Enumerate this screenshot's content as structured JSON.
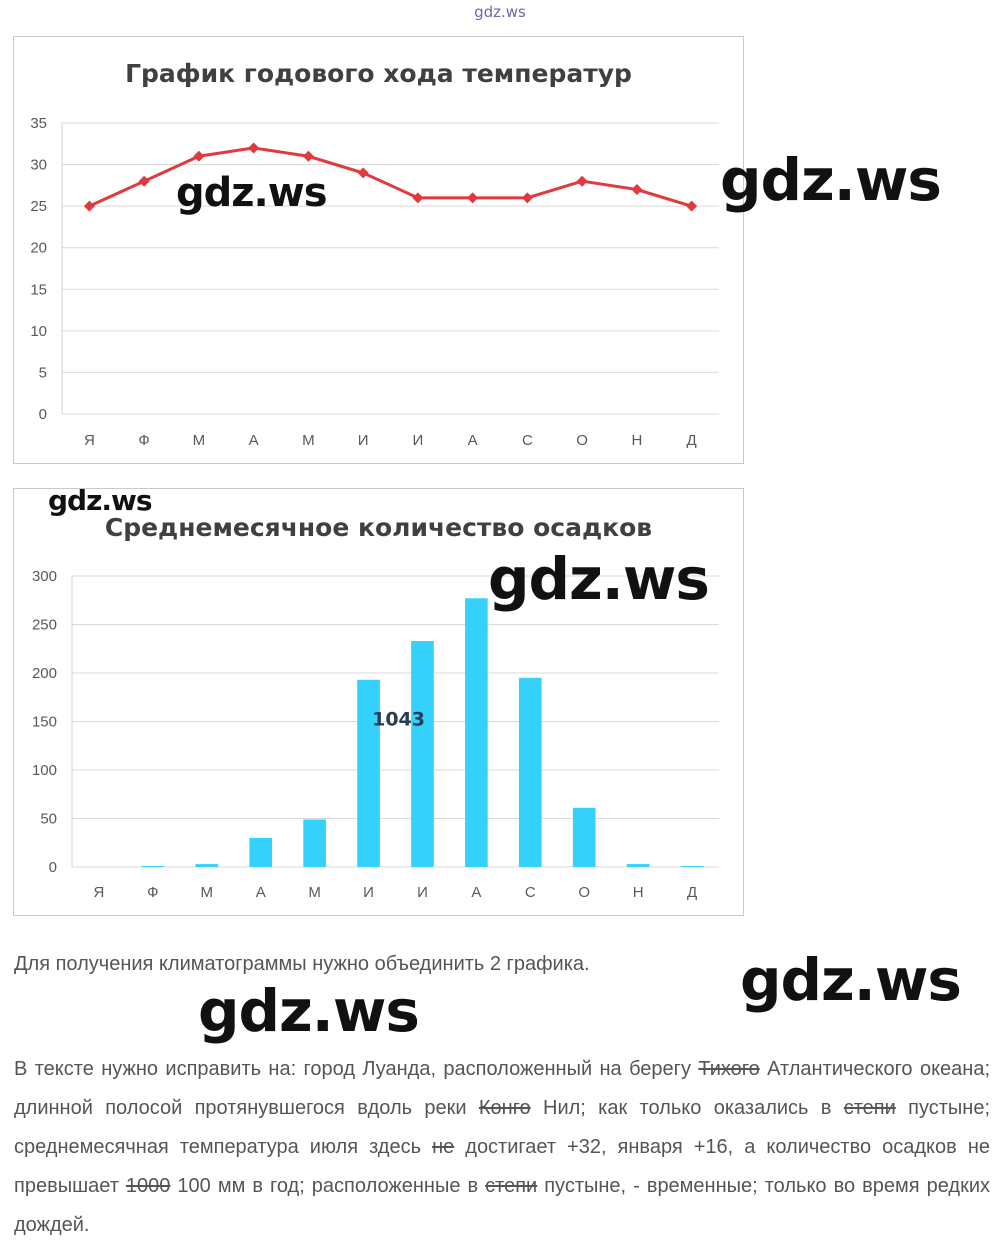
{
  "site_mark": "gdz.ws",
  "watermarks": [
    "gdz.ws",
    "gdz.ws",
    "gdz.ws",
    "gdz.ws",
    "gdz.ws",
    "gdz.ws"
  ],
  "chart_data": [
    {
      "type": "line",
      "title": "График годового хода температур",
      "categories": [
        "Я",
        "Ф",
        "М",
        "А",
        "М",
        "И",
        "И",
        "А",
        "С",
        "О",
        "Н",
        "Д"
      ],
      "values": [
        25,
        28,
        31,
        32,
        31,
        29,
        26,
        26,
        26,
        28,
        27,
        25
      ],
      "ylim": [
        0,
        35
      ],
      "yticks": [
        0,
        5,
        10,
        15,
        20,
        25,
        30,
        35
      ],
      "grid": true,
      "colors": {
        "line": "#e0393e",
        "grid": "#d9d9d9"
      }
    },
    {
      "type": "bar",
      "title": "Среднемесячное количество осадков",
      "categories": [
        "Я",
        "Ф",
        "М",
        "А",
        "М",
        "И",
        "И",
        "А",
        "С",
        "О",
        "Н",
        "Д"
      ],
      "values": [
        0,
        1,
        3,
        30,
        49,
        193,
        233,
        277,
        195,
        61,
        3,
        1
      ],
      "ylim": [
        0,
        300
      ],
      "yticks": [
        0,
        50,
        100,
        150,
        200,
        250,
        300
      ],
      "annotation": "1043",
      "grid": true,
      "colors": {
        "bar": "#33d1fb",
        "grid": "#d9d9d9"
      }
    }
  ],
  "text": {
    "p1": "Для получения климатограммы нужно объединить 2 графика.",
    "p2": [
      {
        "t": "В тексте нужно исправить на: город Луанда, расположенный на берегу "
      },
      {
        "t": "Тихого",
        "strike": true
      },
      {
        "t": " Атлантического океана; длинной полосой протянувшегося вдоль реки "
      },
      {
        "t": "Конго",
        "strike": true
      },
      {
        "t": " Нил; как только оказались в "
      },
      {
        "t": "степи",
        "strike": true
      },
      {
        "t": " пустыне; среднемесячная температура июля здесь "
      },
      {
        "t": "не",
        "strike": true
      },
      {
        "t": " достигает +32, января +16, а количество осадков не превышает "
      },
      {
        "t": "1000",
        "strike": true
      },
      {
        "t": " 100 мм в год; расположенные в "
      },
      {
        "t": "степи",
        "strike": true
      },
      {
        "t": " пустыне, - временные; только во время редких дождей."
      }
    ]
  }
}
